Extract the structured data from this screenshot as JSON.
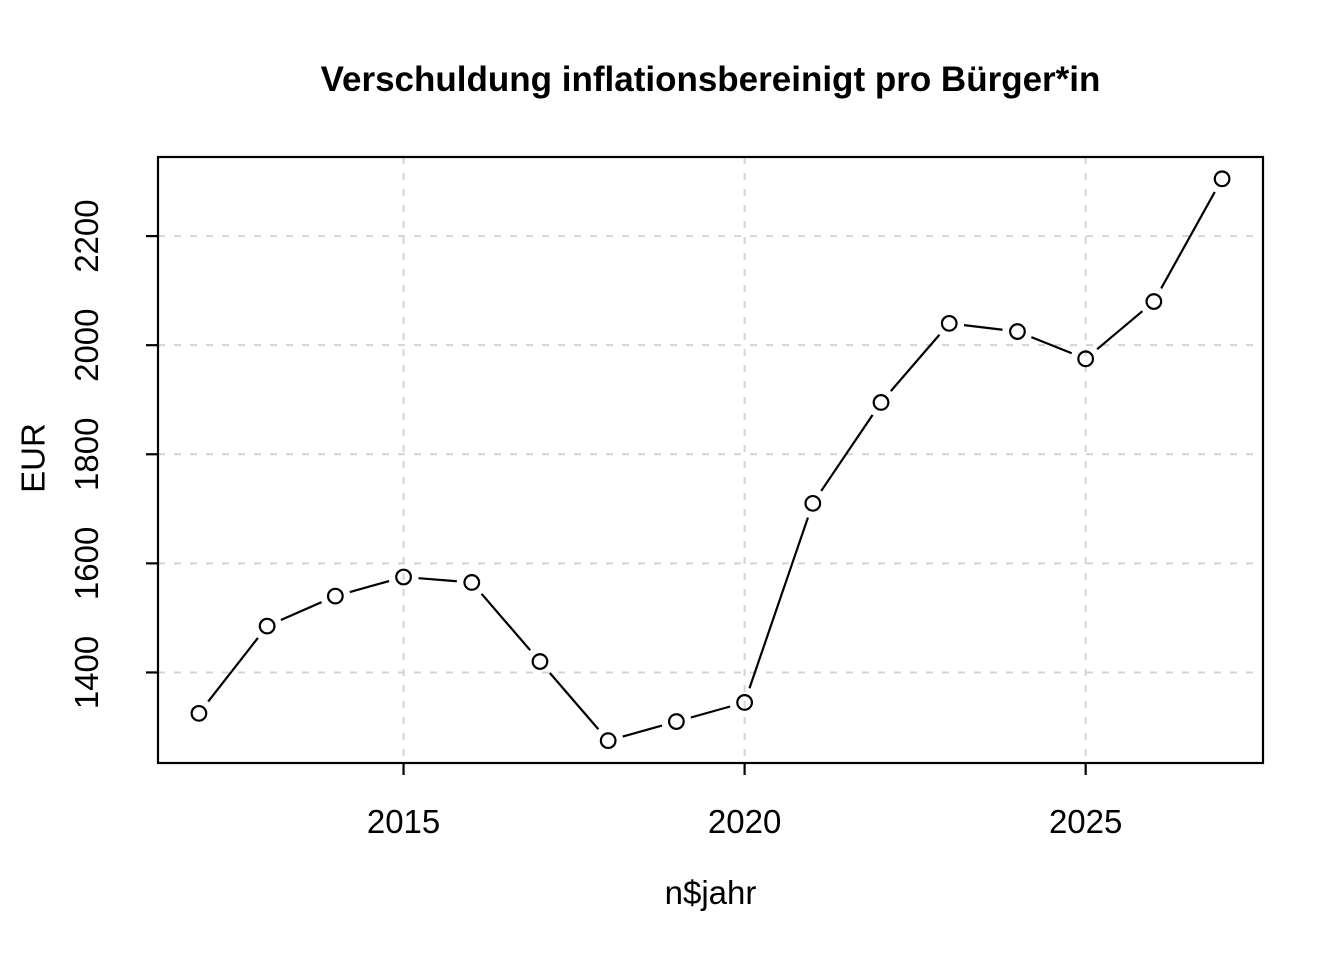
{
  "chart_data": {
    "type": "line",
    "title": "Verschuldung inflationsbereinigt pro Bürger*in",
    "xlabel": "n$jahr",
    "ylabel": "EUR",
    "x": [
      2012,
      2013,
      2014,
      2015,
      2016,
      2017,
      2018,
      2019,
      2020,
      2021,
      2022,
      2023,
      2024,
      2025,
      2026,
      2027
    ],
    "values": [
      1325,
      1485,
      1540,
      1575,
      1565,
      1420,
      1275,
      1310,
      1345,
      1710,
      1895,
      2040,
      2025,
      1975,
      2080,
      2305
    ],
    "x_ticks": [
      2015,
      2020,
      2025
    ],
    "y_ticks": [
      1400,
      1600,
      1800,
      2000,
      2200
    ],
    "xlim": [
      2011.4,
      2027.6
    ],
    "ylim": [
      1234,
      2345
    ],
    "grid": true,
    "grid_style": "dashed",
    "legend_position": "none",
    "marker": "open-circle",
    "colors": {
      "line": "#000000",
      "marker": "#000000",
      "grid": "#d4d4d4",
      "text": "#000000",
      "axis": "#000000",
      "background": "#ffffff"
    }
  }
}
